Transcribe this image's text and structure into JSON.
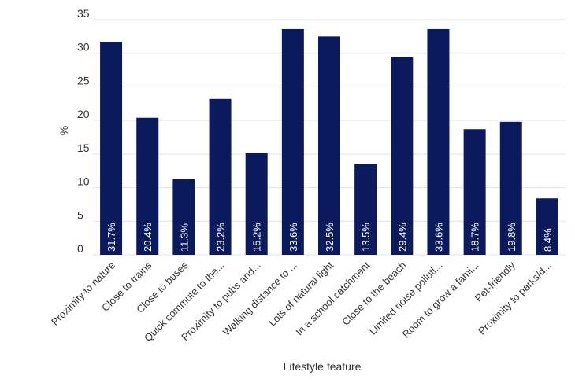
{
  "chart_data": {
    "type": "bar",
    "categories": [
      "Proximity to nature",
      "Close to trains",
      "Close to buses",
      "Quick commute to the...",
      "Proximity to pubs and...",
      "Walking distance to ...",
      "Lots of natural light",
      "In a school catchment",
      "Close to the beach",
      "Limited noise polluti...",
      "Room to grow a fami...",
      "Pet-friendly",
      "Proximity to parks/d..."
    ],
    "values": [
      31.7,
      20.4,
      11.3,
      23.2,
      15.2,
      33.6,
      32.5,
      13.5,
      29.4,
      33.6,
      18.7,
      19.8,
      8.4
    ],
    "data_labels": [
      "31.7%",
      "20.4%",
      "11.3%",
      "23.2%",
      "15.2%",
      "33.6%",
      "32.5%",
      "13.5%",
      "29.4%",
      "33.6%",
      "18.7%",
      "19.8%",
      "8.4%"
    ],
    "xlabel": "Lifestyle feature",
    "ylabel": "%",
    "ylim": [
      0,
      35
    ],
    "yticks": [
      0,
      5,
      10,
      15,
      20,
      25,
      30,
      35
    ],
    "grid": true,
    "legend": "none",
    "colors": {
      "bar": "#0a1a5c",
      "grid": "#e3e3e3",
      "text": "#333333",
      "label": "#ffffff"
    }
  }
}
